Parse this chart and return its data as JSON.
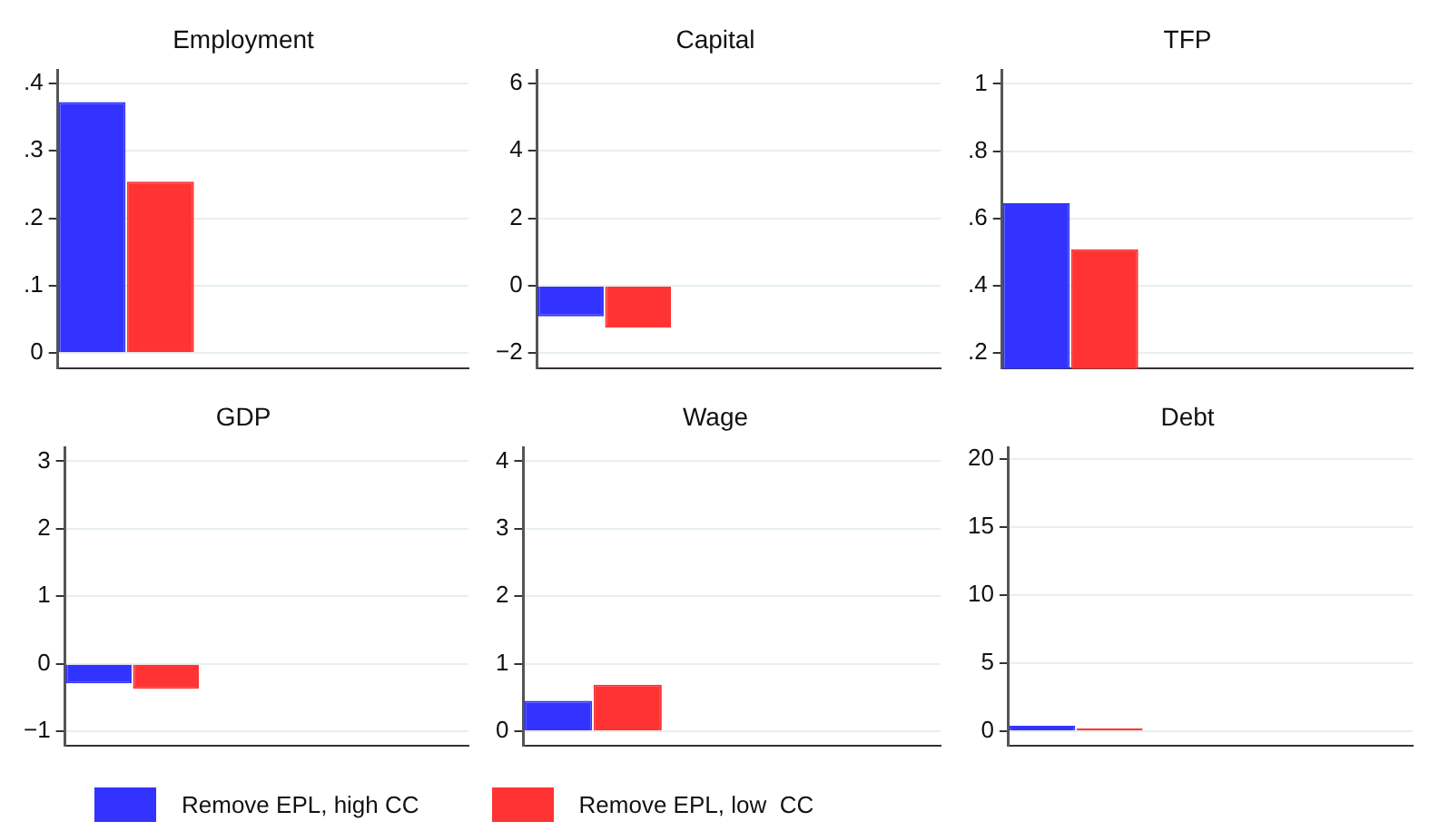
{
  "chart_data": [
    {
      "type": "bar",
      "title": "Employment",
      "categories": [
        null,
        null,
        null
      ],
      "ylim": [
        -0.023,
        0.419
      ],
      "yticks": [
        0,
        {
          "value": 0.1,
          "label": ".1"
        },
        {
          "value": 0.2,
          "label": ".2"
        },
        {
          "value": 0.3,
          "label": ".3"
        },
        {
          "value": 0.4,
          "label": ".4"
        }
      ],
      "grid": "y",
      "legend": "bottom",
      "tick_labels": "y",
      "series": [
        {
          "name": "Remove EPL, high CC",
          "color": "#3333ff",
          "values": [
            0.372,
            null,
            null
          ]
        },
        {
          "name": "Remove EPL, low  CC",
          "color": "#ff3333",
          "values": [
            0.254,
            null,
            null
          ]
        }
      ]
    },
    {
      "type": "bar",
      "title": "Capital",
      "categories": [
        null,
        null,
        null
      ],
      "ylim": [
        -2.46,
        6.38
      ],
      "yticks": [
        {
          "value": -2,
          "label": "−2"
        },
        0,
        2,
        4,
        6
      ],
      "grid": "y",
      "tick_labels": "y",
      "series": [
        {
          "color": "#3333ff",
          "values": [
            -0.91,
            null,
            null
          ]
        },
        {
          "color": "#ff3333",
          "values": [
            -1.24,
            null,
            null
          ]
        }
      ]
    },
    {
      "type": "bar",
      "title": "TFP",
      "categories": [
        null,
        null,
        null
      ],
      "ylim": [
        0.153,
        1.04
      ],
      "yticks": [
        {
          "value": 0.2,
          "label": ".2"
        },
        {
          "value": 0.4,
          "label": ".4"
        },
        {
          "value": 0.6,
          "label": ".6"
        },
        {
          "value": 0.8,
          "label": ".8"
        },
        1
      ],
      "grid": "y",
      "tick_labels": "y",
      "series": [
        {
          "color": "#3333ff",
          "values": [
            0.645,
            null,
            null
          ]
        },
        {
          "color": "#ff3333",
          "values": [
            0.508,
            null,
            null
          ]
        }
      ]
    },
    {
      "type": "bar",
      "title": "GDP",
      "categories": [
        null,
        null,
        null
      ],
      "ylim": [
        -1.22,
        3.2
      ],
      "yticks": [
        {
          "value": -1,
          "label": "−1"
        },
        0,
        1,
        2,
        3
      ],
      "grid": "y",
      "tick_labels": "y",
      "series": [
        {
          "color": "#3333ff",
          "values": [
            -0.29,
            null,
            null
          ]
        },
        {
          "color": "#ff3333",
          "values": [
            -0.37,
            null,
            null
          ]
        }
      ]
    },
    {
      "type": "bar",
      "title": "Wage",
      "categories": [
        null,
        null,
        null
      ],
      "ylim": [
        -0.22,
        4.2
      ],
      "yticks": [
        0,
        1,
        2,
        3,
        4
      ],
      "grid": "y",
      "tick_labels": "y",
      "series": [
        {
          "color": "#3333ff",
          "values": [
            0.45,
            null,
            null
          ]
        },
        {
          "color": "#ff3333",
          "values": [
            0.69,
            null,
            null
          ]
        }
      ]
    },
    {
      "type": "bar",
      "title": "Debt",
      "categories": [
        null,
        null,
        null
      ],
      "ylim": [
        -1.1,
        20.8
      ],
      "yticks": [
        0,
        5,
        10,
        15,
        20
      ],
      "grid": "y",
      "tick_labels": "y",
      "series": [
        {
          "color": "#3333ff",
          "values": [
            0.4,
            null,
            null
          ]
        },
        {
          "color": "#ff3333",
          "values": [
            0.2,
            null,
            null
          ]
        }
      ]
    }
  ]
}
